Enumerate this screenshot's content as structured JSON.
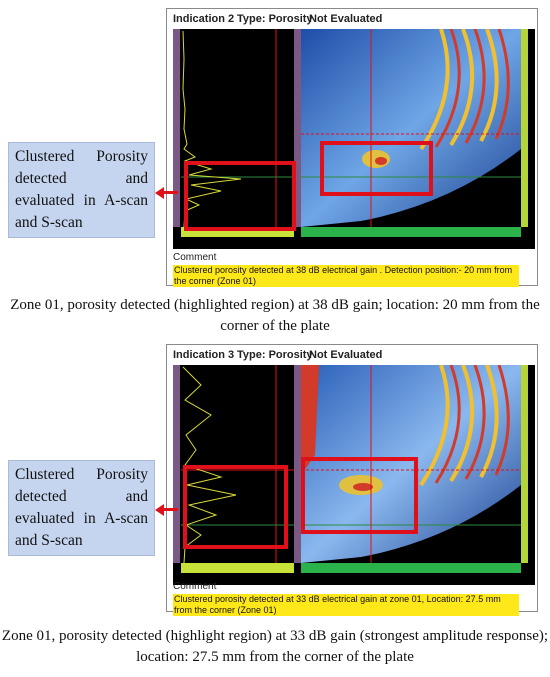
{
  "panels": [
    {
      "indication": "Indication 2",
      "type": "Type: Porosity",
      "status": "Not Evaluated",
      "comment_label": "Comment",
      "comment": "Clustered porosity detected at 38 dB electrical gain . Detection position:- 20 mm from the corner (Zone 01)",
      "callout": "Clustered Porosity detected and evaluated in A-scan and S-scan",
      "caption": "Zone 01, porosity detected (highlighted region) at 38 dB gain; location: 20 mm from the corner of the plate"
    },
    {
      "indication": "Indication 3",
      "type": "Type: Porosity",
      "status": "Not Evaluated",
      "comment_label": "Comment",
      "comment": "Clustered porosity detected at 33 dB electrical gain at zone 01, Location: 27.5 mm from the corner (Zone 01)",
      "callout": "Clustered Porosity detected and evaluated in A-scan and S-scan",
      "caption": "Zone 01, porosity detected (highlight region) at 33 dB gain (strongest amplitude response); location: 27.5 mm from the corner of the plate"
    }
  ],
  "colors": {
    "highlight": "#e0101a",
    "callout_bg": "#c6d5ef",
    "comment_bg": "#ffe81a"
  }
}
